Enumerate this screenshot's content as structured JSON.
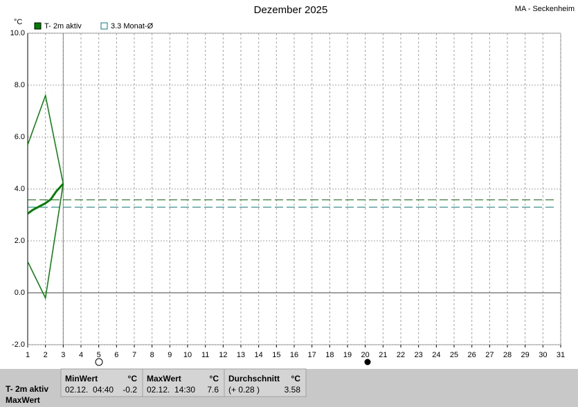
{
  "chart_data": {
    "type": "line",
    "title": "Dezember 2025",
    "location": "MA - Seckenheim",
    "y_label": "°C",
    "xlim": [
      1,
      31
    ],
    "xticks": [
      1,
      2,
      3,
      4,
      5,
      6,
      7,
      8,
      9,
      10,
      11,
      12,
      13,
      14,
      15,
      16,
      17,
      18,
      19,
      20,
      21,
      22,
      23,
      24,
      25,
      26,
      27,
      28,
      29,
      30,
      31
    ],
    "ylim": [
      -2,
      10
    ],
    "yticks": [
      {
        "value": -2,
        "label": "-2.0"
      },
      {
        "value": 0,
        "label": "0.0"
      },
      {
        "value": 2,
        "label": "2.0"
      },
      {
        "value": 4,
        "label": "4.0"
      },
      {
        "value": 6,
        "label": "6.0"
      },
      {
        "value": 8,
        "label": "8.0"
      },
      {
        "value": 10,
        "label": "10.0"
      }
    ],
    "grid": true,
    "current_day": 3,
    "series": [
      {
        "name": "T- 2m aktiv",
        "color": "#008000",
        "x": [
          1,
          1.3,
          2,
          2.3,
          2.6,
          3
        ],
        "values": [
          3.05,
          3.2,
          3.45,
          3.6,
          3.9,
          4.2
        ]
      }
    ],
    "envelope": {
      "color": "#008000",
      "x": [
        1,
        2,
        3
      ],
      "high": [
        5.7,
        7.6,
        4.2
      ],
      "low": [
        1.2,
        -0.2,
        4.2
      ]
    },
    "hlines": [
      {
        "value": 3.58,
        "color": "#006400"
      },
      {
        "name": "3.3 Monat-Ø",
        "value": 3.3,
        "color": "#008080"
      }
    ]
  },
  "stats_table": {
    "row_labels": [
      "T- 2m aktiv",
      "MaxWert"
    ],
    "columns": [
      {
        "header": "MinWert",
        "unit": "°C",
        "time": "02.12.  04:40",
        "value": "-0.2"
      },
      {
        "header": "MaxWert",
        "unit": "°C",
        "time": "02.12.  14:30",
        "value": "7.6"
      },
      {
        "header": "Durchschnitt",
        "unit": "°C",
        "time": "(+ 0.28 )",
        "value": "3.58"
      }
    ]
  }
}
